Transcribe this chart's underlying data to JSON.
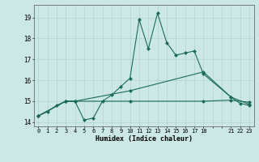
{
  "xlabel": "Humidex (Indice chaleur)",
  "background_color": "#cce8e6",
  "grid_color": "#b0d4d2",
  "line_color": "#1a6b5a",
  "line1_x": [
    0,
    1,
    2,
    3,
    4,
    5,
    6,
    7,
    8,
    9,
    10,
    11,
    12,
    13,
    14,
    15,
    16,
    17,
    18,
    21,
    22,
    23
  ],
  "line1_y": [
    14.3,
    14.5,
    14.8,
    15.0,
    15.0,
    14.1,
    14.2,
    15.0,
    15.3,
    15.7,
    16.1,
    18.9,
    17.5,
    19.2,
    17.8,
    17.2,
    17.3,
    17.4,
    16.3,
    15.2,
    14.9,
    14.8
  ],
  "line2_x": [
    0,
    3,
    4,
    10,
    18,
    21,
    23
  ],
  "line2_y": [
    14.3,
    15.0,
    15.0,
    15.0,
    15.0,
    15.05,
    14.95
  ],
  "line3_x": [
    0,
    3,
    4,
    10,
    18,
    21,
    23
  ],
  "line3_y": [
    14.3,
    15.0,
    15.0,
    15.5,
    16.4,
    15.2,
    14.85
  ],
  "all_x": [
    0,
    1,
    2,
    3,
    4,
    5,
    6,
    7,
    8,
    9,
    10,
    11,
    12,
    13,
    14,
    15,
    16,
    17,
    18,
    19,
    20,
    21,
    22,
    23
  ],
  "xlim": [
    -0.5,
    23.5
  ],
  "ylim": [
    13.8,
    19.6
  ],
  "xtick_labels": [
    "0",
    "1",
    "2",
    "3",
    "4",
    "5",
    "6",
    "7",
    "8",
    "9",
    "10",
    "11",
    "12",
    "13",
    "14",
    "15",
    "16",
    "17",
    "18",
    "",
    "",
    "21",
    "22",
    "23"
  ],
  "yticks": [
    14,
    15,
    16,
    17,
    18,
    19
  ]
}
